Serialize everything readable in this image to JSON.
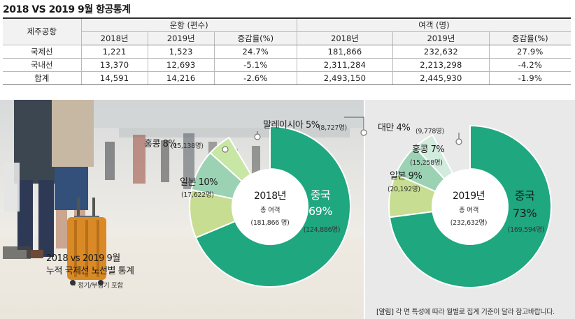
{
  "title": "2018 VS 2019 9월 항공통계",
  "table": {
    "header_airport": "제주공항",
    "header_flights": "운항 (편수)",
    "header_passengers": "여객 (명)",
    "sub_headers": [
      "2018년",
      "2019년",
      "증감률(%)",
      "2018년",
      "2019년",
      "증감률(%)"
    ],
    "rows": [
      {
        "label": "국제선",
        "cells": [
          "1,221",
          "1,523",
          "24.7%",
          "181,866",
          "232,632",
          "27.9%"
        ]
      },
      {
        "label": "국내선",
        "cells": [
          "13,370",
          "12,693",
          "-5.1%",
          "2,311,284",
          "2,213,298",
          "-4.2%"
        ]
      },
      {
        "label": "합계",
        "cells": [
          "14,591",
          "14,216",
          "-2.6%",
          "2,493,150",
          "2,445,930",
          "-1.9%"
        ]
      }
    ]
  },
  "caption": {
    "line1": "2018 vs 2019 9월",
    "line2": "누적 국제선 노선별 통계",
    "note": "* 정기/부정기 포함"
  },
  "footnote": {
    "tag": "[알림]",
    "text": " 각 면 특성에 따라 월별로 집계 기준이 달라 참고바랍니다."
  },
  "colors": {
    "china": "#1fa77f",
    "japan": "#c7dd91",
    "hongkong": "#9bd2b4",
    "malaysia": "#c8e6a4",
    "taiwan": "#d1ebdd"
  },
  "chart_data": [
    {
      "type": "pie",
      "center_title": "2018년",
      "center_sub": "총 여객",
      "center_total": "(181,866 명)",
      "total": 181866,
      "slices": [
        {
          "key": "china",
          "name": "중국",
          "pct_label": "69%",
          "count_label": "(124,886명)",
          "pct": 69,
          "value": 124886
        },
        {
          "key": "japan",
          "name": "일본",
          "pct_label": "10%",
          "count_label": "(17,622명)",
          "pct": 10,
          "value": 17622
        },
        {
          "key": "hongkong",
          "name": "홍콩",
          "pct_label": "8%",
          "count_label": "(15,138명)",
          "pct": 8,
          "value": 15138
        },
        {
          "key": "malaysia",
          "name": "말레이시아",
          "pct_label": "5%",
          "count_label": "(8,727명)",
          "pct": 5,
          "value": 8727
        }
      ]
    },
    {
      "type": "pie",
      "center_title": "2019년",
      "center_sub": "총 여객",
      "center_total": "(232,632명)",
      "total": 232632,
      "slices": [
        {
          "key": "china",
          "name": "중국",
          "pct_label": "73%",
          "count_label": "(169,594명)",
          "pct": 73,
          "value": 169594
        },
        {
          "key": "japan",
          "name": "일본",
          "pct_label": "9%",
          "count_label": "(20,192명)",
          "pct": 9,
          "value": 20192
        },
        {
          "key": "hongkong",
          "name": "홍콩",
          "pct_label": "7%",
          "count_label": "(15,258명)",
          "pct": 7,
          "value": 15258
        },
        {
          "key": "taiwan",
          "name": "대만",
          "pct_label": "4%",
          "count_label": "(9,778명)",
          "pct": 4,
          "value": 9778
        }
      ]
    }
  ]
}
